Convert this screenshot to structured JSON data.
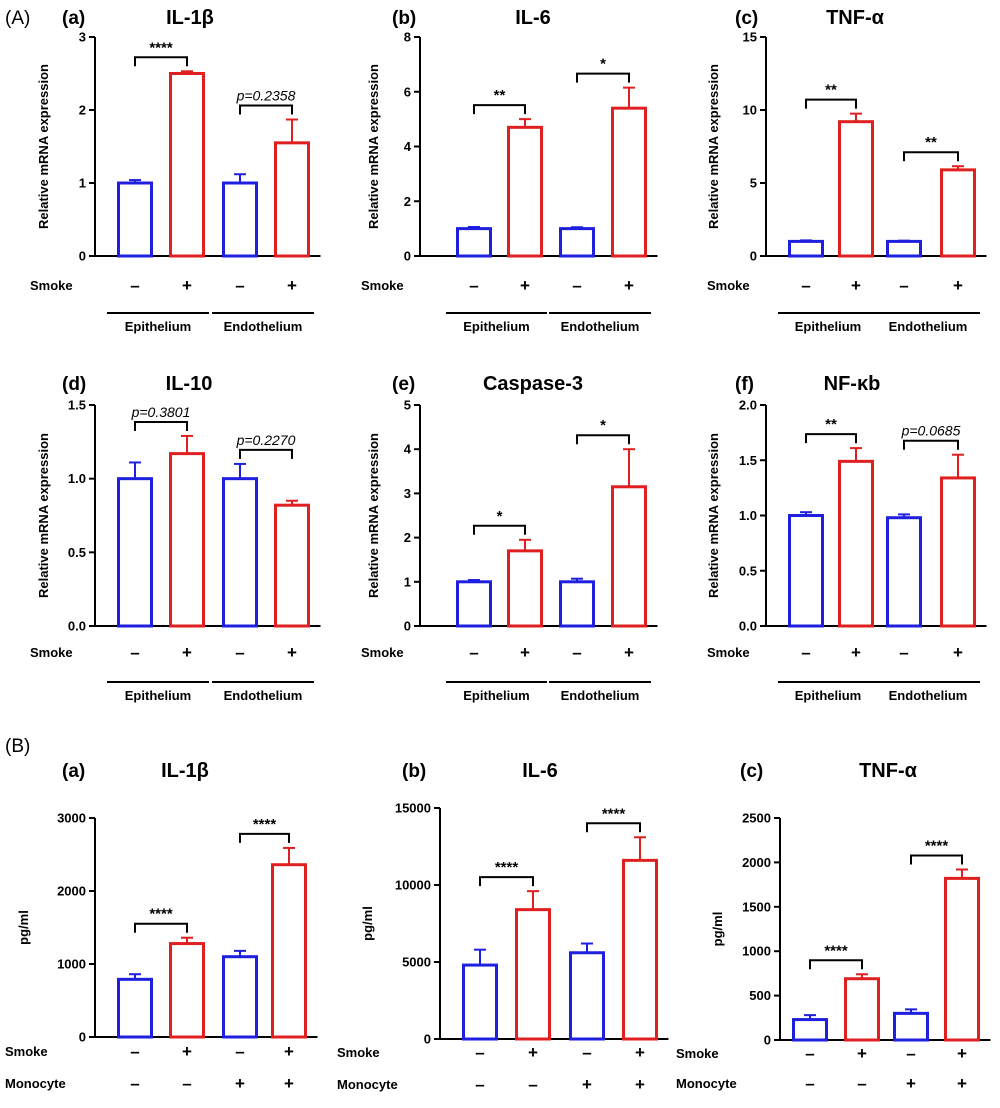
{
  "figure": {
    "section_A": "(A)",
    "section_B": "(B)"
  },
  "colors": {
    "control": "#1f1fe0",
    "smoke": "#e02020",
    "axis": "#000000"
  },
  "chart_data": [
    {
      "id": "A-a",
      "type": "bar",
      "letter": "(a)",
      "title": "IL-1β",
      "ylabel": "Relative mRNA expression",
      "ylim": [
        0,
        3
      ],
      "yticks": [
        "0",
        "1",
        "2",
        "3"
      ],
      "values": [
        1.0,
        2.5,
        1.0,
        1.55
      ],
      "errors": [
        0.04,
        0.03,
        0.12,
        0.32
      ],
      "rows": [
        {
          "label": "Smoke",
          "signs": [
            "–",
            "+",
            "–",
            "+"
          ]
        }
      ],
      "groups": [
        "Epithelium",
        "Endothelium"
      ],
      "comparisons": [
        {
          "pair": [
            0,
            1
          ],
          "text": "****",
          "italic": false
        },
        {
          "pair": [
            2,
            3
          ],
          "text": "p=0.2358",
          "italic": true
        }
      ]
    },
    {
      "id": "A-b",
      "type": "bar",
      "letter": "(b)",
      "title": "IL-6",
      "ylabel": "Relative mRNA expression",
      "ylim": [
        0,
        8
      ],
      "yticks": [
        "0",
        "2",
        "4",
        "6",
        "8"
      ],
      "values": [
        1.0,
        4.7,
        1.0,
        5.4
      ],
      "errors": [
        0.06,
        0.3,
        0.05,
        0.75
      ],
      "rows": [
        {
          "label": "Smoke",
          "signs": [
            "–",
            "+",
            "–",
            "+"
          ]
        }
      ],
      "groups": [
        "Epithelium",
        "Endothelium"
      ],
      "comparisons": [
        {
          "pair": [
            0,
            1
          ],
          "text": "**",
          "italic": false
        },
        {
          "pair": [
            2,
            3
          ],
          "text": "*",
          "italic": false
        }
      ]
    },
    {
      "id": "A-c",
      "type": "bar",
      "letter": "(c)",
      "title": "TNF-α",
      "ylabel": "Relative mRNA expression",
      "ylim": [
        0,
        15
      ],
      "yticks": [
        "0",
        "5",
        "10",
        "15"
      ],
      "values": [
        1.0,
        9.2,
        1.0,
        5.9
      ],
      "errors": [
        0.07,
        0.55,
        0.05,
        0.25
      ],
      "rows": [
        {
          "label": "Smoke",
          "signs": [
            "–",
            "+",
            "–",
            "+"
          ]
        }
      ],
      "groups": [
        "Epithelium",
        "Endothelium"
      ],
      "comparisons": [
        {
          "pair": [
            0,
            1
          ],
          "text": "**",
          "italic": false
        },
        {
          "pair": [
            2,
            3
          ],
          "text": "**",
          "italic": false
        }
      ]
    },
    {
      "id": "A-d",
      "type": "bar",
      "letter": "(d)",
      "title": "IL-10",
      "ylabel": "Relative mRNA expression",
      "ylim": [
        0,
        1.5
      ],
      "yticks": [
        "0.0",
        "0.5",
        "1.0",
        "1.5"
      ],
      "values": [
        1.0,
        1.17,
        1.0,
        0.82
      ],
      "errors": [
        0.11,
        0.12,
        0.1,
        0.03
      ],
      "rows": [
        {
          "label": "Smoke",
          "signs": [
            "–",
            "+",
            "–",
            "+"
          ]
        }
      ],
      "groups": [
        "Epithelium",
        "Endothelium"
      ],
      "comparisons": [
        {
          "pair": [
            0,
            1
          ],
          "text": "p=0.3801",
          "italic": true
        },
        {
          "pair": [
            2,
            3
          ],
          "text": "p=0.2270",
          "italic": true
        }
      ]
    },
    {
      "id": "A-e",
      "type": "bar",
      "letter": "(e)",
      "title": "Caspase-3",
      "ylabel": "Relative mRNA expression",
      "ylim": [
        0,
        5
      ],
      "yticks": [
        "0",
        "1",
        "2",
        "3",
        "4",
        "5"
      ],
      "values": [
        1.0,
        1.7,
        1.0,
        3.15
      ],
      "errors": [
        0.04,
        0.25,
        0.07,
        0.85
      ],
      "rows": [
        {
          "label": "Smoke",
          "signs": [
            "–",
            "+",
            "–",
            "+"
          ]
        }
      ],
      "groups": [
        "Epithelium",
        "Endothelium"
      ],
      "comparisons": [
        {
          "pair": [
            0,
            1
          ],
          "text": "*",
          "italic": false
        },
        {
          "pair": [
            2,
            3
          ],
          "text": "*",
          "italic": false
        }
      ]
    },
    {
      "id": "A-f",
      "type": "bar",
      "letter": "(f)",
      "title": "NF-κb",
      "ylabel": "Relative mRNA expression",
      "ylim": [
        0,
        2
      ],
      "yticks": [
        "0.0",
        "0.5",
        "1.0",
        "1.5",
        "2.0"
      ],
      "values": [
        1.0,
        1.49,
        0.98,
        1.34
      ],
      "errors": [
        0.03,
        0.12,
        0.03,
        0.21
      ],
      "rows": [
        {
          "label": "Smoke",
          "signs": [
            "–",
            "+",
            "–",
            "+"
          ]
        }
      ],
      "groups": [
        "Epithelium",
        "Endothelium"
      ],
      "comparisons": [
        {
          "pair": [
            0,
            1
          ],
          "text": "**",
          "italic": false
        },
        {
          "pair": [
            2,
            3
          ],
          "text": "p=0.0685",
          "italic": true
        }
      ]
    },
    {
      "id": "B-a",
      "type": "bar",
      "letter": "(a)",
      "title": "IL-1β",
      "ylabel": "pg/ml",
      "ylim": [
        0,
        3000
      ],
      "yticks": [
        "0",
        "1000",
        "2000",
        "3000"
      ],
      "values": [
        790,
        1280,
        1100,
        2360
      ],
      "errors": [
        70,
        80,
        80,
        230
      ],
      "rows": [
        {
          "label": "Smoke",
          "signs": [
            "–",
            "+",
            "–",
            "+"
          ]
        },
        {
          "label": "Monocyte",
          "signs": [
            "–",
            "–",
            "+",
            "+"
          ]
        }
      ],
      "groups": [],
      "comparisons": [
        {
          "pair": [
            0,
            1
          ],
          "text": "****",
          "italic": false
        },
        {
          "pair": [
            2,
            3
          ],
          "text": "****",
          "italic": false
        }
      ]
    },
    {
      "id": "B-b",
      "type": "bar",
      "letter": "(b)",
      "title": "IL-6",
      "ylabel": "pg/ml",
      "ylim": [
        0,
        15000
      ],
      "yticks": [
        "0",
        "5000",
        "10000",
        "15000"
      ],
      "values": [
        4800,
        8400,
        5600,
        11600
      ],
      "errors": [
        1000,
        1200,
        600,
        1500
      ],
      "rows": [
        {
          "label": "Smoke",
          "signs": [
            "–",
            "+",
            "–",
            "+"
          ]
        },
        {
          "label": "Monocyte",
          "signs": [
            "–",
            "–",
            "+",
            "+"
          ]
        }
      ],
      "groups": [],
      "comparisons": [
        {
          "pair": [
            0,
            1
          ],
          "text": "****",
          "italic": false
        },
        {
          "pair": [
            2,
            3
          ],
          "text": "****",
          "italic": false
        }
      ]
    },
    {
      "id": "B-c",
      "type": "bar",
      "letter": "(c)",
      "title": "TNF-α",
      "ylabel": "pg/ml",
      "ylim": [
        0,
        2500
      ],
      "yticks": [
        "0",
        "500",
        "1000",
        "1500",
        "2000",
        "2500"
      ],
      "values": [
        230,
        690,
        300,
        1820
      ],
      "errors": [
        50,
        50,
        45,
        100
      ],
      "rows": [
        {
          "label": "Smoke",
          "signs": [
            "–",
            "+",
            "–",
            "+"
          ]
        },
        {
          "label": "Monocyte",
          "signs": [
            "–",
            "–",
            "+",
            "+"
          ]
        }
      ],
      "groups": [],
      "comparisons": [
        {
          "pair": [
            0,
            1
          ],
          "text": "****",
          "italic": false
        },
        {
          "pair": [
            2,
            3
          ],
          "text": "****",
          "italic": false
        }
      ]
    }
  ]
}
